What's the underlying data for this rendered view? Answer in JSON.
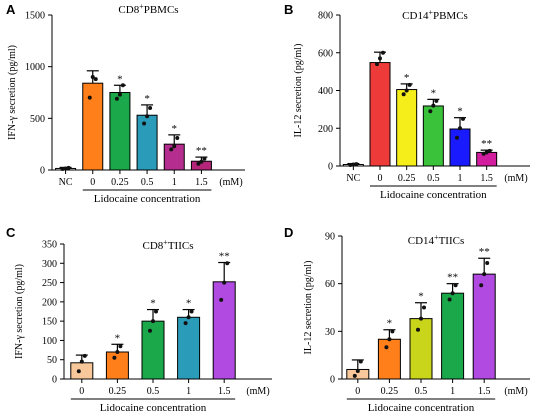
{
  "chart_data": [
    {
      "type": "bar",
      "panel_letter": "A",
      "title_parts": [
        "CD8",
        "+",
        "PBMCs"
      ],
      "ylabel": "IFN-γ secretion (pg/ml)",
      "xlabel": "Lidocaine concentration",
      "unit_label": "(mM)",
      "ylim": [
        0,
        1500
      ],
      "yticks": [
        "0",
        "500",
        "1000",
        "1500"
      ],
      "categories": [
        "NC",
        "0",
        "0.25",
        "0.5",
        "1",
        "1.5"
      ],
      "values": [
        15,
        840,
        750,
        530,
        250,
        85
      ],
      "errors": [
        10,
        120,
        70,
        100,
        90,
        40
      ],
      "points": [
        [
          10,
          15,
          20
        ],
        [
          700,
          900,
          880
        ],
        [
          690,
          730,
          820
        ],
        [
          450,
          520,
          600
        ],
        [
          200,
          230,
          310
        ],
        [
          60,
          80,
          110
        ]
      ],
      "significance": [
        "",
        "",
        "*",
        "*",
        "*",
        "**"
      ],
      "colors": [
        "#ffffff",
        "#ff7f1a",
        "#1aa84a",
        "#2a9bb8",
        "#b52d8e",
        "#b5267a"
      ]
    },
    {
      "type": "bar",
      "panel_letter": "B",
      "title_parts": [
        "CD14",
        "+",
        "PBMCs"
      ],
      "ylabel": "IL-12 secretion (pg/ml)",
      "xlabel": "Lidocaine concentration",
      "unit_label": "(mM)",
      "ylim": [
        0,
        800
      ],
      "yticks": [
        "0",
        "200",
        "400",
        "600",
        "800"
      ],
      "categories": [
        "NC",
        "0",
        "0.25",
        "0.5",
        "1",
        "1.5"
      ],
      "values": [
        8,
        548,
        405,
        318,
        196,
        72
      ],
      "errors": [
        5,
        55,
        30,
        35,
        60,
        12
      ],
      "points": [
        [
          5,
          8,
          10
        ],
        [
          540,
          570,
          600
        ],
        [
          380,
          400,
          430
        ],
        [
          290,
          320,
          345
        ],
        [
          150,
          200,
          250
        ],
        [
          65,
          72,
          80
        ]
      ],
      "significance": [
        "",
        "",
        "*",
        "*",
        "*",
        "**"
      ],
      "colors": [
        "#ffffff",
        "#ef3a3a",
        "#f5ee1a",
        "#3ac23a",
        "#1a1aff",
        "#d21e9e"
      ]
    },
    {
      "type": "bar",
      "panel_letter": "C",
      "title_parts": [
        "CD8",
        "+",
        "TIICs"
      ],
      "ylabel": "IFN-γ secretion (pg/ml)",
      "xlabel": "Lidocaine concentration",
      "unit_label": "(mM)",
      "ylim": [
        0,
        350
      ],
      "yticks": [
        "0",
        "50",
        "100",
        "150",
        "200",
        "250",
        "300",
        "350"
      ],
      "categories": [
        "0",
        "0.25",
        "0.5",
        "1",
        "1.5"
      ],
      "values": [
        42,
        70,
        150,
        160,
        252
      ],
      "errors": [
        20,
        20,
        30,
        20,
        50
      ],
      "points": [
        [
          20,
          45,
          60
        ],
        [
          55,
          70,
          85
        ],
        [
          125,
          150,
          175
        ],
        [
          145,
          160,
          175
        ],
        [
          205,
          250,
          300
        ]
      ],
      "significance": [
        "",
        "*",
        "*",
        "*",
        "**"
      ],
      "colors": [
        "#f8c89a",
        "#ff7f1a",
        "#1aa84a",
        "#2a9bb8",
        "#b04ae0"
      ]
    },
    {
      "type": "bar",
      "panel_letter": "D",
      "title_parts": [
        "CD14",
        "+",
        "TIICs"
      ],
      "ylabel": "IL-12 secretion (pg/ml)",
      "xlabel": "Lidocaine concentration",
      "unit_label": "(mM)",
      "ylim": [
        0,
        90
      ],
      "yticks": [
        "0",
        "30",
        "60",
        "90"
      ],
      "categories": [
        "0",
        "0.25",
        "0.5",
        "1",
        "1.5"
      ],
      "values": [
        6,
        25,
        38,
        54,
        66
      ],
      "errors": [
        6,
        6,
        10,
        6,
        10
      ],
      "points": [
        [
          2,
          5,
          11
        ],
        [
          20,
          25,
          30
        ],
        [
          31,
          38,
          45
        ],
        [
          50,
          54,
          59
        ],
        [
          59,
          66,
          73
        ]
      ],
      "significance": [
        "",
        "*",
        "*",
        "**",
        "**"
      ],
      "colors": [
        "#f8c89a",
        "#ff7f1a",
        "#c8d51a",
        "#1aa84a",
        "#b04ae0"
      ]
    }
  ]
}
